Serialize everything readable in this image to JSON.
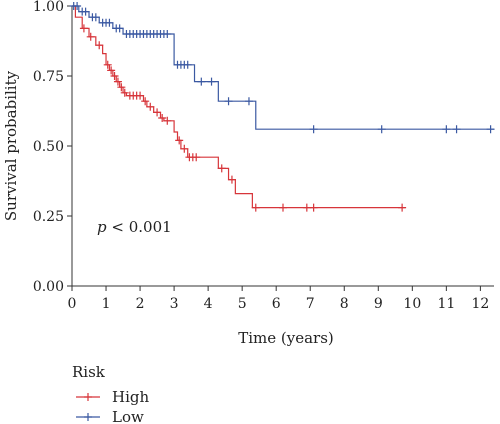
{
  "chart_data": {
    "type": "line",
    "title": "",
    "xlabel": "Time (years)",
    "ylabel": "Survival probability",
    "xlim": [
      0,
      12.4
    ],
    "ylim": [
      0,
      1
    ],
    "xticks": [
      0,
      1,
      2,
      3,
      4,
      5,
      6,
      7,
      8,
      9,
      10,
      11,
      12
    ],
    "yticks": [
      0.0,
      0.25,
      0.5,
      0.75,
      1.0
    ],
    "xtick_labels": [
      "0",
      "1",
      "2",
      "3",
      "4",
      "5",
      "6",
      "7",
      "8",
      "9",
      "10",
      "11",
      "12"
    ],
    "ytick_labels": [
      "0.00",
      "0.25",
      "0.50",
      "0.75",
      "1.00"
    ],
    "grid": false,
    "annotation": {
      "italic": "p",
      "rest": " < 0.001"
    },
    "legend": {
      "title": "Risk",
      "placement": "bottom-left"
    },
    "series": [
      {
        "name": "High",
        "color": "#d7353a",
        "steps": [
          [
            0,
            1.0
          ],
          [
            0.1,
            0.96
          ],
          [
            0.3,
            0.92
          ],
          [
            0.5,
            0.89
          ],
          [
            0.7,
            0.86
          ],
          [
            0.9,
            0.83
          ],
          [
            1.0,
            0.79
          ],
          [
            1.1,
            0.77
          ],
          [
            1.2,
            0.75
          ],
          [
            1.3,
            0.73
          ],
          [
            1.4,
            0.71
          ],
          [
            1.5,
            0.69
          ],
          [
            1.6,
            0.68
          ],
          [
            2.1,
            0.66
          ],
          [
            2.2,
            0.64
          ],
          [
            2.4,
            0.62
          ],
          [
            2.6,
            0.6
          ],
          [
            2.7,
            0.59
          ],
          [
            3.0,
            0.55
          ],
          [
            3.1,
            0.52
          ],
          [
            3.2,
            0.49
          ],
          [
            3.4,
            0.46
          ],
          [
            4.3,
            0.42
          ],
          [
            4.6,
            0.38
          ],
          [
            4.8,
            0.33
          ],
          [
            5.3,
            0.28
          ],
          [
            9.8,
            0.28
          ]
        ],
        "censor": [
          [
            0.35,
            0.92
          ],
          [
            0.55,
            0.89
          ],
          [
            0.8,
            0.86
          ],
          [
            1.05,
            0.79
          ],
          [
            1.15,
            0.77
          ],
          [
            1.25,
            0.75
          ],
          [
            1.35,
            0.73
          ],
          [
            1.45,
            0.71
          ],
          [
            1.55,
            0.69
          ],
          [
            1.7,
            0.68
          ],
          [
            1.8,
            0.68
          ],
          [
            1.9,
            0.68
          ],
          [
            2.0,
            0.68
          ],
          [
            2.15,
            0.66
          ],
          [
            2.3,
            0.64
          ],
          [
            2.5,
            0.62
          ],
          [
            2.65,
            0.6
          ],
          [
            2.8,
            0.59
          ],
          [
            3.15,
            0.52
          ],
          [
            3.3,
            0.49
          ],
          [
            3.45,
            0.46
          ],
          [
            3.55,
            0.46
          ],
          [
            3.65,
            0.46
          ],
          [
            4.4,
            0.42
          ],
          [
            4.7,
            0.38
          ],
          [
            5.4,
            0.28
          ],
          [
            6.2,
            0.28
          ],
          [
            6.9,
            0.28
          ],
          [
            7.1,
            0.28
          ],
          [
            9.7,
            0.28
          ]
        ]
      },
      {
        "name": "Low",
        "color": "#3b59a2",
        "steps": [
          [
            0,
            1.0
          ],
          [
            0.2,
            0.98
          ],
          [
            0.5,
            0.96
          ],
          [
            0.8,
            0.94
          ],
          [
            1.2,
            0.92
          ],
          [
            1.5,
            0.9
          ],
          [
            2.9,
            0.9
          ],
          [
            3.0,
            0.79
          ],
          [
            3.6,
            0.73
          ],
          [
            4.3,
            0.66
          ],
          [
            5.4,
            0.56
          ],
          [
            12.4,
            0.56
          ]
        ],
        "censor": [
          [
            0.05,
            1.0
          ],
          [
            0.15,
            1.0
          ],
          [
            0.3,
            0.98
          ],
          [
            0.4,
            0.98
          ],
          [
            0.6,
            0.96
          ],
          [
            0.7,
            0.96
          ],
          [
            0.9,
            0.94
          ],
          [
            1.0,
            0.94
          ],
          [
            1.1,
            0.94
          ],
          [
            1.3,
            0.92
          ],
          [
            1.4,
            0.92
          ],
          [
            1.6,
            0.9
          ],
          [
            1.7,
            0.9
          ],
          [
            1.8,
            0.9
          ],
          [
            1.9,
            0.9
          ],
          [
            2.0,
            0.9
          ],
          [
            2.1,
            0.9
          ],
          [
            2.2,
            0.9
          ],
          [
            2.3,
            0.9
          ],
          [
            2.4,
            0.9
          ],
          [
            2.5,
            0.9
          ],
          [
            2.6,
            0.9
          ],
          [
            2.7,
            0.9
          ],
          [
            2.8,
            0.9
          ],
          [
            3.1,
            0.79
          ],
          [
            3.2,
            0.79
          ],
          [
            3.3,
            0.79
          ],
          [
            3.4,
            0.79
          ],
          [
            3.8,
            0.73
          ],
          [
            4.1,
            0.73
          ],
          [
            4.6,
            0.66
          ],
          [
            5.2,
            0.66
          ],
          [
            7.1,
            0.56
          ],
          [
            9.1,
            0.56
          ],
          [
            11.0,
            0.56
          ],
          [
            11.3,
            0.56
          ],
          [
            12.3,
            0.56
          ]
        ]
      }
    ]
  }
}
